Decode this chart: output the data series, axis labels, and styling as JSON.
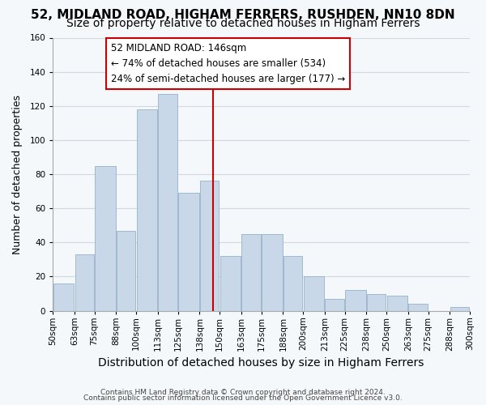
{
  "title": "52, MIDLAND ROAD, HIGHAM FERRERS, RUSHDEN, NN10 8DN",
  "subtitle": "Size of property relative to detached houses in Higham Ferrers",
  "xlabel": "Distribution of detached houses by size in Higham Ferrers",
  "ylabel": "Number of detached properties",
  "footnote1": "Contains HM Land Registry data © Crown copyright and database right 2024.",
  "footnote2": "Contains public sector information licensed under the Open Government Licence v3.0.",
  "bin_labels": [
    "50sqm",
    "63sqm",
    "75sqm",
    "88sqm",
    "100sqm",
    "113sqm",
    "125sqm",
    "138sqm",
    "150sqm",
    "163sqm",
    "175sqm",
    "188sqm",
    "200sqm",
    "213sqm",
    "225sqm",
    "238sqm",
    "250sqm",
    "263sqm",
    "275sqm",
    "288sqm",
    "300sqm"
  ],
  "bin_edges": [
    50,
    63,
    75,
    88,
    100,
    113,
    125,
    138,
    150,
    163,
    175,
    188,
    200,
    213,
    225,
    238,
    250,
    263,
    275,
    288,
    300
  ],
  "bar_heights": [
    16,
    33,
    85,
    47,
    118,
    127,
    69,
    76,
    32,
    45,
    45,
    32,
    20,
    7,
    12,
    10,
    9,
    4,
    0,
    2
  ],
  "bar_color": "#c8d8e8",
  "bar_edge_color": "#a0b8d0",
  "grid_color": "#d0d8e0",
  "vline_x": 146,
  "vline_color": "#cc0000",
  "annotation_line1": "52 MIDLAND ROAD: 146sqm",
  "annotation_line2": "← 74% of detached houses are smaller (534)",
  "annotation_line3": "24% of semi-detached houses are larger (177) →",
  "annotation_box_color": "#ffffff",
  "annotation_box_edge": "#cc0000",
  "ylim": [
    0,
    160
  ],
  "yticks": [
    0,
    20,
    40,
    60,
    80,
    100,
    120,
    140,
    160
  ],
  "background_color": "#f5f8fb",
  "title_fontsize": 11,
  "subtitle_fontsize": 10,
  "xlabel_fontsize": 10,
  "ylabel_fontsize": 9,
  "tick_fontsize": 7.5,
  "annotation_fontsize": 8.5
}
